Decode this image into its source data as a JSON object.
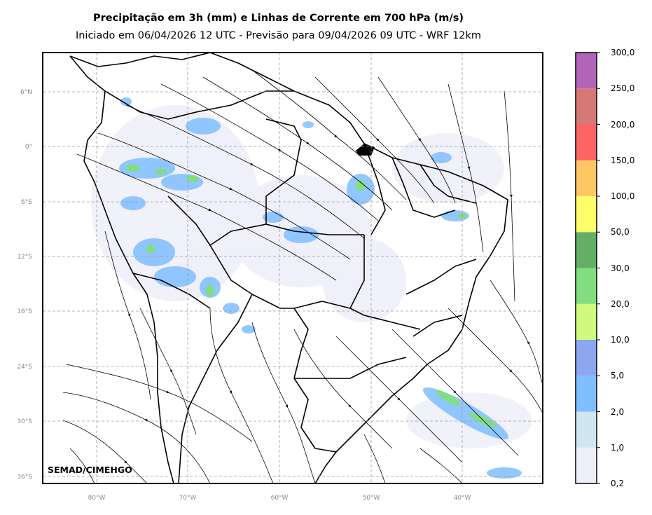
{
  "title": "Precipitação em 3h (mm) e Linhas de Corrente em 700 hPa (m/s)",
  "subtitle": "Iniciado em 06/04/2026 12 UTC - Previsão para 09/04/2026 09 UTC - WRF 12km",
  "credit": "SEMAD/CIMEHGO",
  "map": {
    "lat_labels": [
      "6°N",
      "0°",
      "6°S",
      "12°S",
      "18°S",
      "24°S",
      "30°S",
      "36°S"
    ],
    "lon_labels": [
      "80°W",
      "70°W",
      "60°W",
      "50°W",
      "40°W"
    ],
    "gridlines": "dashed"
  },
  "colorbar": {
    "labels": [
      "0,2",
      "1,0",
      "2,0",
      "5,0",
      "10,0",
      "20,0",
      "30,0",
      "50,0",
      "100,0",
      "150,0",
      "200,0",
      "250,0",
      "300,0"
    ],
    "colors": [
      "#efeffa",
      "#cfe6ef",
      "#7fbfff",
      "#8ca6f0",
      "#cffa7e",
      "#82de7e",
      "#64af64",
      "#fffe6a",
      "#ffc664",
      "#ff6464",
      "#d67876",
      "#b065b8"
    ]
  }
}
